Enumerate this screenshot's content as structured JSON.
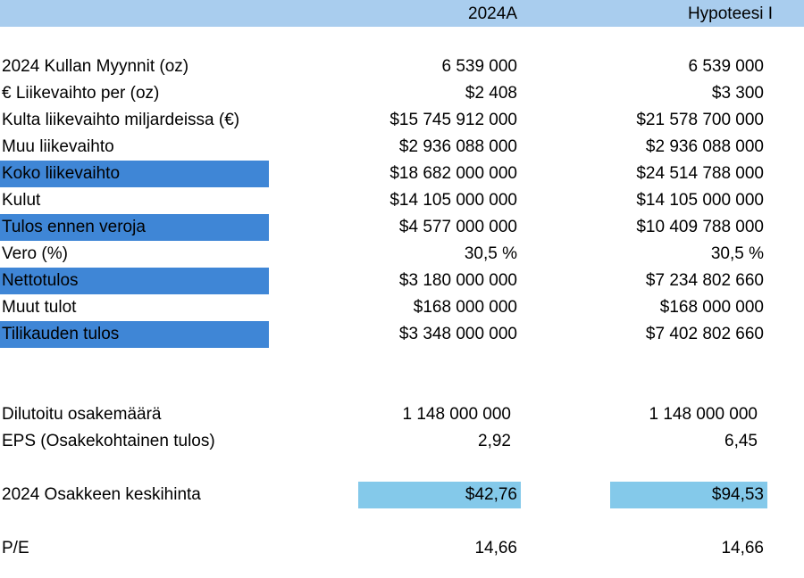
{
  "header": {
    "col1": "2024A",
    "col2": "Hypoteesi I"
  },
  "rows": [
    {
      "label": "2024 Kullan Myynnit (oz)",
      "v1": "6 539 000",
      "v2": "6 539 000"
    },
    {
      "label": "€ Liikevaihto per (oz)",
      "v1": "$2 408",
      "v2": "$3 300"
    },
    {
      "label": "Kulta liikevaihto miljardeissa (€)",
      "v1": "$15 745 912 000",
      "v2": "$21 578 700 000"
    },
    {
      "label": "Muu liikevaihto",
      "v1": "$2 936 088 000",
      "v2": "$2 936 088 000"
    },
    {
      "label": "Koko liikevaihto",
      "v1": "$18 682 000 000",
      "v2": "$24 514 788 000"
    },
    {
      "label": "Kulut",
      "v1": "$14 105 000 000",
      "v2": "$14 105 000 000"
    },
    {
      "label": "Tulos ennen veroja",
      "v1": "$4 577 000 000",
      "v2": "$10 409 788 000"
    },
    {
      "label": "Vero (%)",
      "v1": "30,5 %",
      "v2": "30,5 %"
    },
    {
      "label": "Nettotulos",
      "v1": "$3 180 000 000",
      "v2": "$7 234 802 660"
    },
    {
      "label": "Muut tulot",
      "v1": "$168 000 000",
      "v2": "$168 000 000"
    },
    {
      "label": "Tilikauden tulos",
      "v1": "$3 348 000 000",
      "v2": "$7 402 802 660"
    }
  ],
  "shares": {
    "label": "Dilutoitu osakemäärä",
    "v1": "1 148 000 000",
    "v2": "1 148 000 000"
  },
  "eps": {
    "label": "EPS (Osakekohtainen tulos)",
    "v1": "2,92",
    "v2": "6,45"
  },
  "price": {
    "label": "2024 Osakkeen keskihinta",
    "v1": "$42,76",
    "v2": "$94,53"
  },
  "pe": {
    "label": "P/E",
    "v1": "14,66",
    "v2": "14,66"
  },
  "colors": {
    "header": "#a9cdee",
    "highlight": "#3f86d6",
    "price_fill": "#84c9ea"
  }
}
